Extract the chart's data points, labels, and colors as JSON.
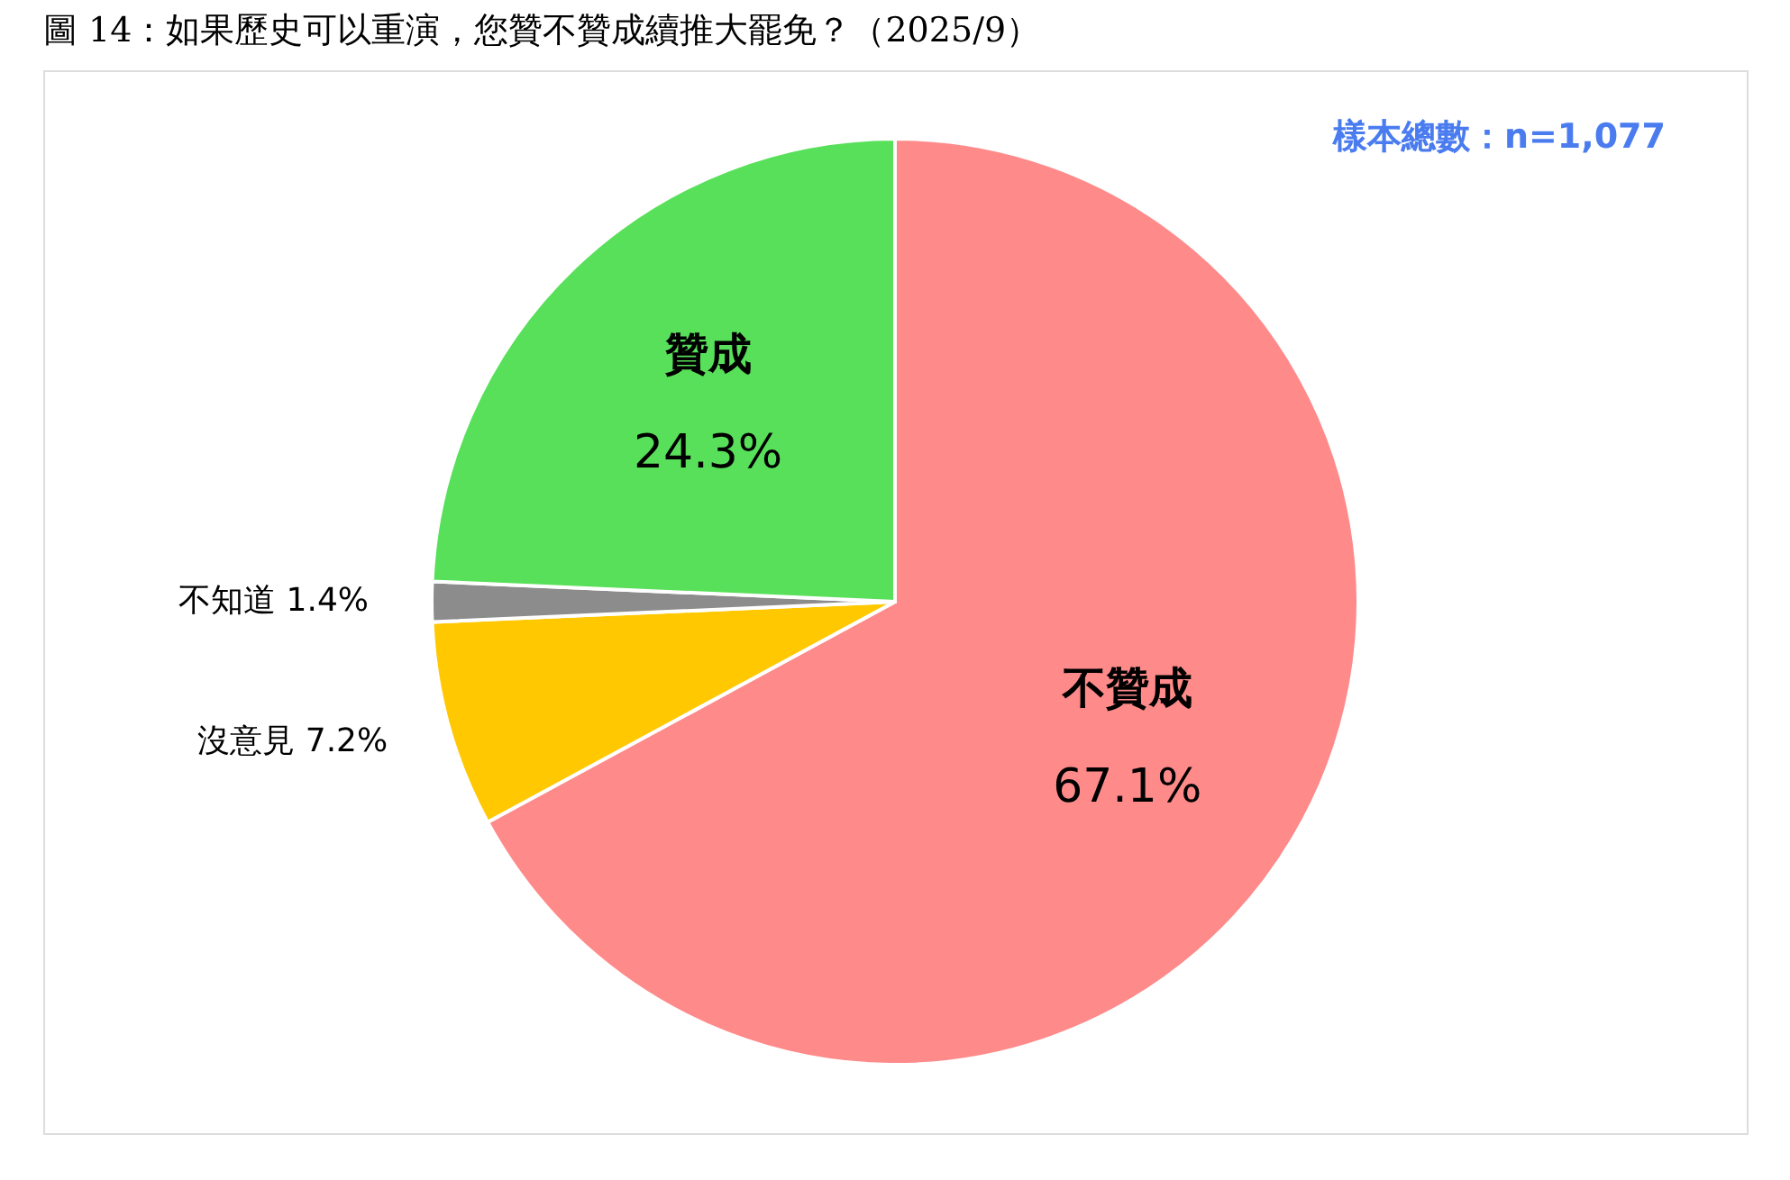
{
  "chart_data": {
    "type": "pie",
    "title": "圖 14：如果歷史可以重演，您贊不贊成續推大罷免？（2025/9）",
    "categories": [
      "不贊成",
      "沒意見",
      "不知道",
      "贊成"
    ],
    "values": [
      67.1,
      7.2,
      1.4,
      24.3
    ],
    "colors": [
      "#ff8a8a",
      "#ffc800",
      "#8c8c8c",
      "#58e05a"
    ],
    "value_labels": [
      "67.1%",
      "7.2%",
      "1.4%",
      "24.3%"
    ],
    "annotations": [
      "樣本總數：n=1,077"
    ],
    "legend": false
  }
}
